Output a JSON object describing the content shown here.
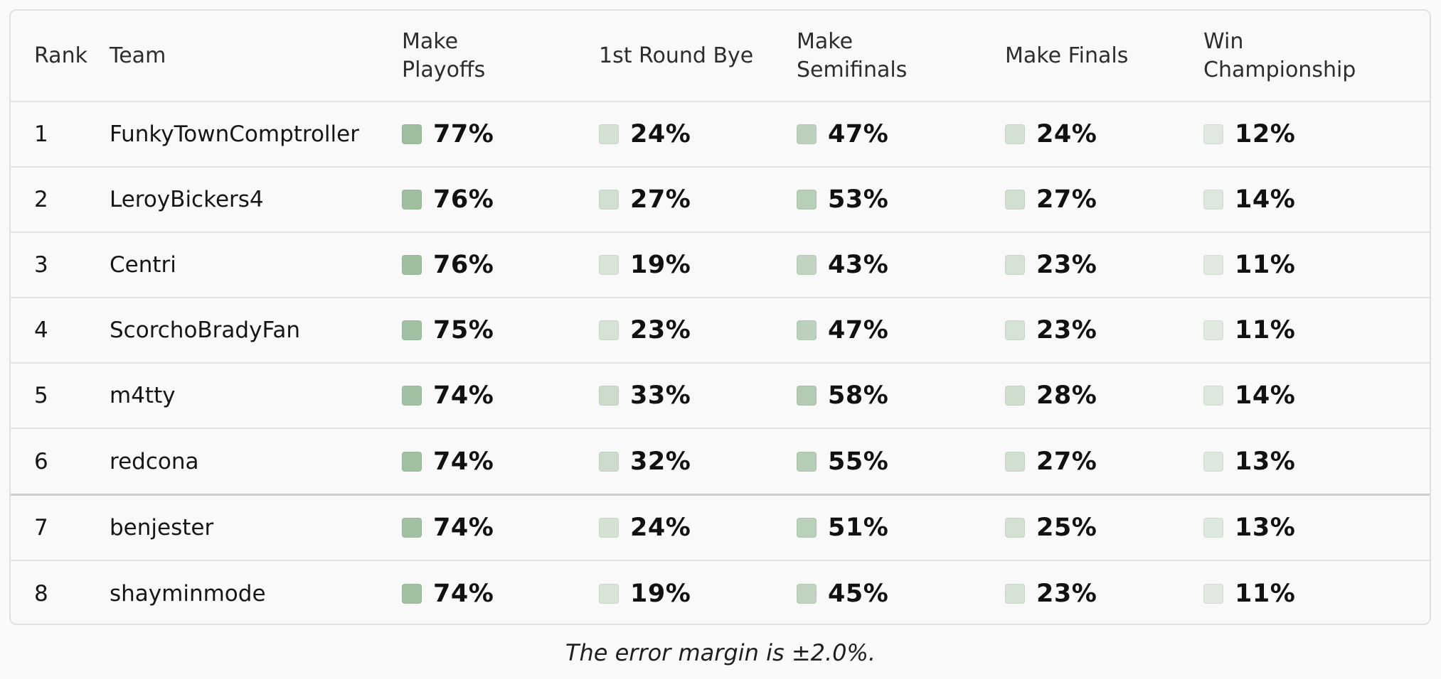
{
  "columns": [
    "Rank",
    "Team",
    "Make\nPlayoffs",
    "1st Round Bye",
    "Make\nSemifinals",
    "Make Finals",
    "Win\nChampionship"
  ],
  "rows": [
    {
      "rank": "1",
      "team": "FunkyTownComptroller",
      "playoffs": "77%",
      "bye": "24%",
      "semis": "47%",
      "finals": "24%",
      "champ": "12%"
    },
    {
      "rank": "2",
      "team": "LeroyBickers4",
      "playoffs": "76%",
      "bye": "27%",
      "semis": "53%",
      "finals": "27%",
      "champ": "14%"
    },
    {
      "rank": "3",
      "team": "Centri",
      "playoffs": "76%",
      "bye": "19%",
      "semis": "43%",
      "finals": "23%",
      "champ": "11%"
    },
    {
      "rank": "4",
      "team": "ScorchoBradyFan",
      "playoffs": "75%",
      "bye": "23%",
      "semis": "47%",
      "finals": "23%",
      "champ": "11%"
    },
    {
      "rank": "5",
      "team": "m4tty",
      "playoffs": "74%",
      "bye": "33%",
      "semis": "58%",
      "finals": "28%",
      "champ": "14%"
    },
    {
      "rank": "6",
      "team": "redcona",
      "playoffs": "74%",
      "bye": "32%",
      "semis": "55%",
      "finals": "27%",
      "champ": "13%"
    },
    {
      "rank": "7",
      "team": "benjester",
      "playoffs": "74%",
      "bye": "24%",
      "semis": "51%",
      "finals": "25%",
      "champ": "13%"
    },
    {
      "rank": "8",
      "team": "shayminmode",
      "playoffs": "74%",
      "bye": "19%",
      "semis": "45%",
      "finals": "23%",
      "champ": "11%"
    }
  ],
  "footnote": "The error margin is ±2.0%.",
  "colors": {
    "swatch_base": "#8fb48f",
    "playoff_cutoff_line": "#cfcfcf",
    "border": "#e1e1e1",
    "background": "#fafafa"
  }
}
